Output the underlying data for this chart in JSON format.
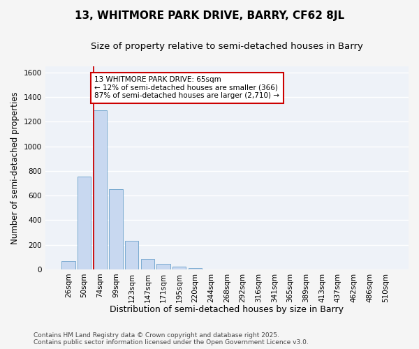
{
  "title": "13, WHITMORE PARK DRIVE, BARRY, CF62 8JL",
  "subtitle": "Size of property relative to semi-detached houses in Barry",
  "xlabel": "Distribution of semi-detached houses by size in Barry",
  "ylabel": "Number of semi-detached properties",
  "bar_color": "#c8d8f0",
  "bar_edge_color": "#7aaad0",
  "background_color": "#eef2f8",
  "grid_color": "#ffffff",
  "fig_background": "#f5f5f5",
  "categories": [
    "26sqm",
    "50sqm",
    "74sqm",
    "99sqm",
    "123sqm",
    "147sqm",
    "171sqm",
    "195sqm",
    "220sqm",
    "244sqm",
    "268sqm",
    "292sqm",
    "316sqm",
    "341sqm",
    "365sqm",
    "389sqm",
    "413sqm",
    "437sqm",
    "462sqm",
    "486sqm",
    "510sqm"
  ],
  "values": [
    65,
    755,
    1290,
    650,
    230,
    85,
    45,
    20,
    10,
    0,
    0,
    0,
    0,
    0,
    0,
    0,
    0,
    0,
    0,
    0,
    0
  ],
  "ylim": [
    0,
    1650
  ],
  "yticks": [
    0,
    200,
    400,
    600,
    800,
    1000,
    1200,
    1400,
    1600
  ],
  "property_line_x": 1.58,
  "annotation_text": "13 WHITMORE PARK DRIVE: 65sqm\n← 12% of semi-detached houses are smaller (366)\n87% of semi-detached houses are larger (2,710) →",
  "annotation_box_color": "#ffffff",
  "annotation_box_edge": "#cc0000",
  "vline_color": "#cc0000",
  "footer_line1": "Contains HM Land Registry data © Crown copyright and database right 2025.",
  "footer_line2": "Contains public sector information licensed under the Open Government Licence v3.0.",
  "title_fontsize": 11,
  "subtitle_fontsize": 9.5,
  "tick_fontsize": 7.5,
  "ylabel_fontsize": 8.5,
  "xlabel_fontsize": 9,
  "annotation_fontsize": 7.5,
  "footer_fontsize": 6.5
}
